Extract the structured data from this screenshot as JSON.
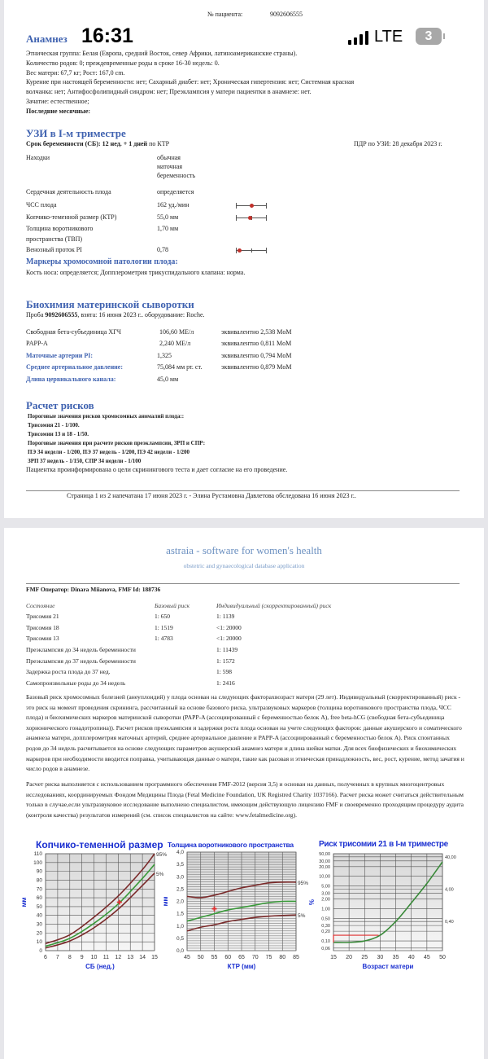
{
  "status_bar": {
    "time": "16:31",
    "network": "LTE",
    "battery": "3"
  },
  "header": {
    "patient_label": "№ пациента:",
    "patient_id": "9092606555"
  },
  "anamnesis": {
    "title": "Анамнез",
    "lines": [
      "Этническая группа: Белая (Европа, средний Восток, север Африки, латиноамериканские страны).",
      "Количество родов: 0;  преждевременные роды в сроке 16-30 недель: 0.",
      "Вес матери: 67,7 кг;  Рост: 167,0 cm.",
      "Курение при настоящей беременности: нет;  Сахарный диабет: нет;  Хроническая гипертензия: нет;  Системная красная",
      "волчанка: нет;  Антифосфолипидный синдром: нет;  Преэклампсия у матери пациентки в анамнезе: нет.",
      "Зачатие: естественное;"
    ],
    "last_period": "Последние месячные:"
  },
  "ultrasound": {
    "title": "УЗИ в I-м триместре",
    "ga_bold": "Срок беременности (СБ): 12 нед. + 1 дней",
    "ga_suffix": " по КТР",
    "edd": "ПДР по УЗИ: 28 декабря 2023 г.",
    "findings_label": "Находки",
    "findings_value": [
      "обычная",
      "маточная",
      "беременность"
    ],
    "rows": [
      {
        "label": "Сердечная деятельность плода",
        "value": "определяется"
      },
      {
        "label": "ЧСС плода",
        "value": "162 уд./мин",
        "range_position": 0.5
      },
      {
        "label": "Копчико-теменной размер (КТР)",
        "value": "55,0 мм",
        "range_position": 0.45
      },
      {
        "label": "Толщина воротникового",
        "label2": "пространства (ТВП)",
        "value": "1,70 мм"
      },
      {
        "label": "Венозный проток PI",
        "value": "0,78",
        "range_position": 0.1
      }
    ],
    "markers_title": "Маркеры хромосомной патологии плода:",
    "markers_text": "Кость носа: определяется;  Допплерометрия трикуспидального клапана: норма."
  },
  "biochem": {
    "title": "Биохимия материнской сыворотки",
    "sample_prefix": "Проба ",
    "sample_id": "9092606555",
    "sample_suffix": ", взята: 16 июня 2023 г..   оборудование: Roche.",
    "rows": [
      {
        "label": "Свободная бета-субъединица ХГЧ",
        "value": "106,60 МЕ/л",
        "mom": "эквивалентно 2,538 MoM"
      },
      {
        "label": "PAPP-A",
        "value": "2,240 МЕ/л",
        "mom": "эквивалентно 0,811 MoM"
      },
      {
        "label": "Маточные артерии PI:",
        "value": "1,325",
        "mom": "эквивалентно 0,794 MoM"
      },
      {
        "label": "Среднее артериальное давление:",
        "value": "75,084 мм рт. ст.",
        "mom": "эквивалентно 0,879 MoM"
      },
      {
        "label": "Длина цервикального канала:",
        "value": "45,0 мм"
      }
    ]
  },
  "risks": {
    "title": "Расчет рисков",
    "lines": [
      "Пороговые значения рисков хромосомных аномалий плода::",
      "Трисомия 21 - 1/100.",
      "Трисомии 13 и 18 - 1/50.",
      "Пороговые значения при расчете рисков преэклампсии, ЗРП и СПР:",
      "ПЭ 34 недели - 1/200, ПЭ 37 недель - 1/200, ПЭ 42 недели - 1/200",
      "ЗРП 37 недель - 1/150, СПР 34 недели - 1/100"
    ],
    "consent": "Пациентка проинформирована о цели скринингового теста и дает согласие на его проведение."
  },
  "footer1": "Страница 1 из 2 напечатана 17 июня 2023 г. -  Элина  Рустамовна Давлетова обследована 16 июня 2023 г..",
  "page2": {
    "brand": "astraia - software for women's health",
    "brand_sub": "obstetric and gynaecological database application",
    "operator": "FMF Оператор: Dinara Miianova, FMF Id: 188736",
    "table_headers": [
      "Состояние",
      "Базовый риск",
      "Индивидуальный (скорректированный) риск"
    ],
    "table_rows": [
      [
        "Трисомия 21",
        "1: 650",
        "1: 1139"
      ],
      [
        "Трисомия 18",
        "1: 1519",
        "<1: 20000"
      ],
      [
        "Трисомия 13",
        "1: 4783",
        "<1: 20000"
      ],
      [
        "Преэклампсия до 34 недель беременности",
        "",
        "1: 11439"
      ],
      [
        "Преэклампсия до 37 недель беременности",
        "",
        "1: 1572"
      ],
      [
        "Задержка роста плода до 37 нед.",
        "",
        "1: 598"
      ],
      [
        "Самопроизвольные роды до 34 недель",
        "",
        "1: 2416"
      ]
    ],
    "paragraph1": "Базовый риск хромосомных болезней (анеуплоидий) у плода основан на следующих факторахвозраст матери (29 лет). Индивидуальный (скорректированный) риск - это риск на момент проведения скрининга, рассчитанный на основе базового риска, ультразвуковых маркеров (толщина воротникового пространства плода, ЧСС плода) и биохимических маркеров материнской сыворотки (PAPP-A (ассоциированный с беременностью белок А), free beta-hCG (свободная бета-субъединица хорионического гонадотропина)). Расчет рисков преэклампсии и задержки роста плода основан на учете следующих факторов: данные акушерского и соматического анамнеза матери, допплерометрия маточных артерий, среднее артериальное давление и PAPP-A (ассоциированный с беременностью белок А). Риск спонтанных родов до 34 недель расчитывается на основе следующих параметров акушерский анамнез матери и длина шейки матки. Для всех биофизических и биохимических маркеров при необходимости вводится поправка, учитывающая данные о матери, такие как расовая и этническая принадлежность, вес, рост, курение, метод зачатия и число родов в анамнезе.",
    "paragraph2": "Расчет риска выполняется с использованием программного обеспечения FMF-2012 (версия 3,5) и основан на данных, полученных в крупных многоцентровых исследованиях, координируемых Фондом Медицины Плода (Fetal Medicine Foundation, UK Registred Charity 1037166). Расчет риска может считаться действительным только в случае,если ультразвуковое исследование выполнено специалистом, имеющим действующую лицензию FMF и своевременно проходящим процедуру аудита (контроля качества) результатов измерений (см. список специалистов на сайте: www.fetalmedicine.org)."
  },
  "chart_data": [
    {
      "type": "line",
      "title": "Копчико-теменной размер",
      "xlabel": "СБ (нед.)",
      "ylabel": "мм",
      "xlim": [
        6,
        15
      ],
      "ylim": [
        0,
        110
      ],
      "xticks": [
        6,
        7,
        8,
        9,
        10,
        11,
        12,
        13,
        14,
        15
      ],
      "yticks": [
        0,
        10,
        20,
        30,
        40,
        50,
        60,
        70,
        80,
        90,
        100,
        110
      ],
      "x": [
        6,
        8,
        10,
        12,
        14,
        15
      ],
      "series": [
        {
          "name": "95%",
          "values": [
            8,
            18,
            38,
            62,
            92,
            110
          ],
          "color": "#7a2a2a"
        },
        {
          "values": [
            5,
            14,
            31,
            53,
            82,
            98
          ],
          "color": "#3a9a3a"
        },
        {
          "name": "5%",
          "values": [
            3,
            11,
            26,
            47,
            74,
            88
          ],
          "color": "#7a2a2a"
        }
      ],
      "point": {
        "x": 12.1,
        "y": 55,
        "color": "#e03030"
      },
      "grid": true
    },
    {
      "type": "line",
      "title": "Толщина воротникового пространства",
      "xlabel": "КТР (мм)",
      "ylabel": "мм",
      "xlim": [
        45,
        85
      ],
      "ylim": [
        0,
        4
      ],
      "xticks": [
        45,
        50,
        55,
        60,
        65,
        70,
        75,
        80,
        85
      ],
      "yticks": [
        "0,0",
        "0,5",
        "1,0",
        "1,5",
        "2,0",
        "2,5",
        "3,0",
        "3,5",
        "4,0"
      ],
      "x": [
        45,
        50,
        55,
        60,
        65,
        70,
        75,
        80,
        85
      ],
      "series": [
        {
          "name": "95%",
          "values": [
            2.2,
            2.15,
            2.25,
            2.4,
            2.55,
            2.65,
            2.75,
            2.78,
            2.78
          ],
          "color": "#7a2a2a"
        },
        {
          "values": [
            1.2,
            1.35,
            1.5,
            1.65,
            1.75,
            1.85,
            1.95,
            2.0,
            2.0
          ],
          "color": "#3a9a3a"
        },
        {
          "name": "5%",
          "values": [
            0.8,
            0.95,
            1.05,
            1.18,
            1.27,
            1.35,
            1.4,
            1.43,
            1.45
          ],
          "color": "#7a2a2a"
        }
      ],
      "point": {
        "x": 55,
        "y": 1.7,
        "color": "#e03030"
      },
      "grid": true
    },
    {
      "type": "line",
      "title": "Риск трисомии 21 в I-м триместре",
      "xlabel": "Возраст матери",
      "ylabel": "%",
      "xlim": [
        15,
        50
      ],
      "ylim": [
        0.05,
        50
      ],
      "yscale": "log",
      "xticks": [
        15,
        20,
        25,
        30,
        35,
        40,
        45,
        50
      ],
      "yticks": [
        "0,06",
        "0,10",
        "0,20",
        "0,30",
        "0,40",
        "0,50",
        "1,00",
        "2,00",
        "3,00",
        "4,00",
        "5,00",
        "10,00",
        "20,00",
        "30,00",
        "40,00",
        "50,00"
      ],
      "x": [
        15,
        20,
        25,
        30,
        35,
        40,
        45,
        50
      ],
      "series": [
        {
          "values": [
            0.09,
            0.09,
            0.1,
            0.15,
            0.4,
            1.5,
            6,
            28
          ],
          "color": "#3a8a3a"
        }
      ],
      "marker": {
        "age": 29.5,
        "risk": 0.15,
        "color": "#e03030"
      },
      "grid": true
    }
  ]
}
